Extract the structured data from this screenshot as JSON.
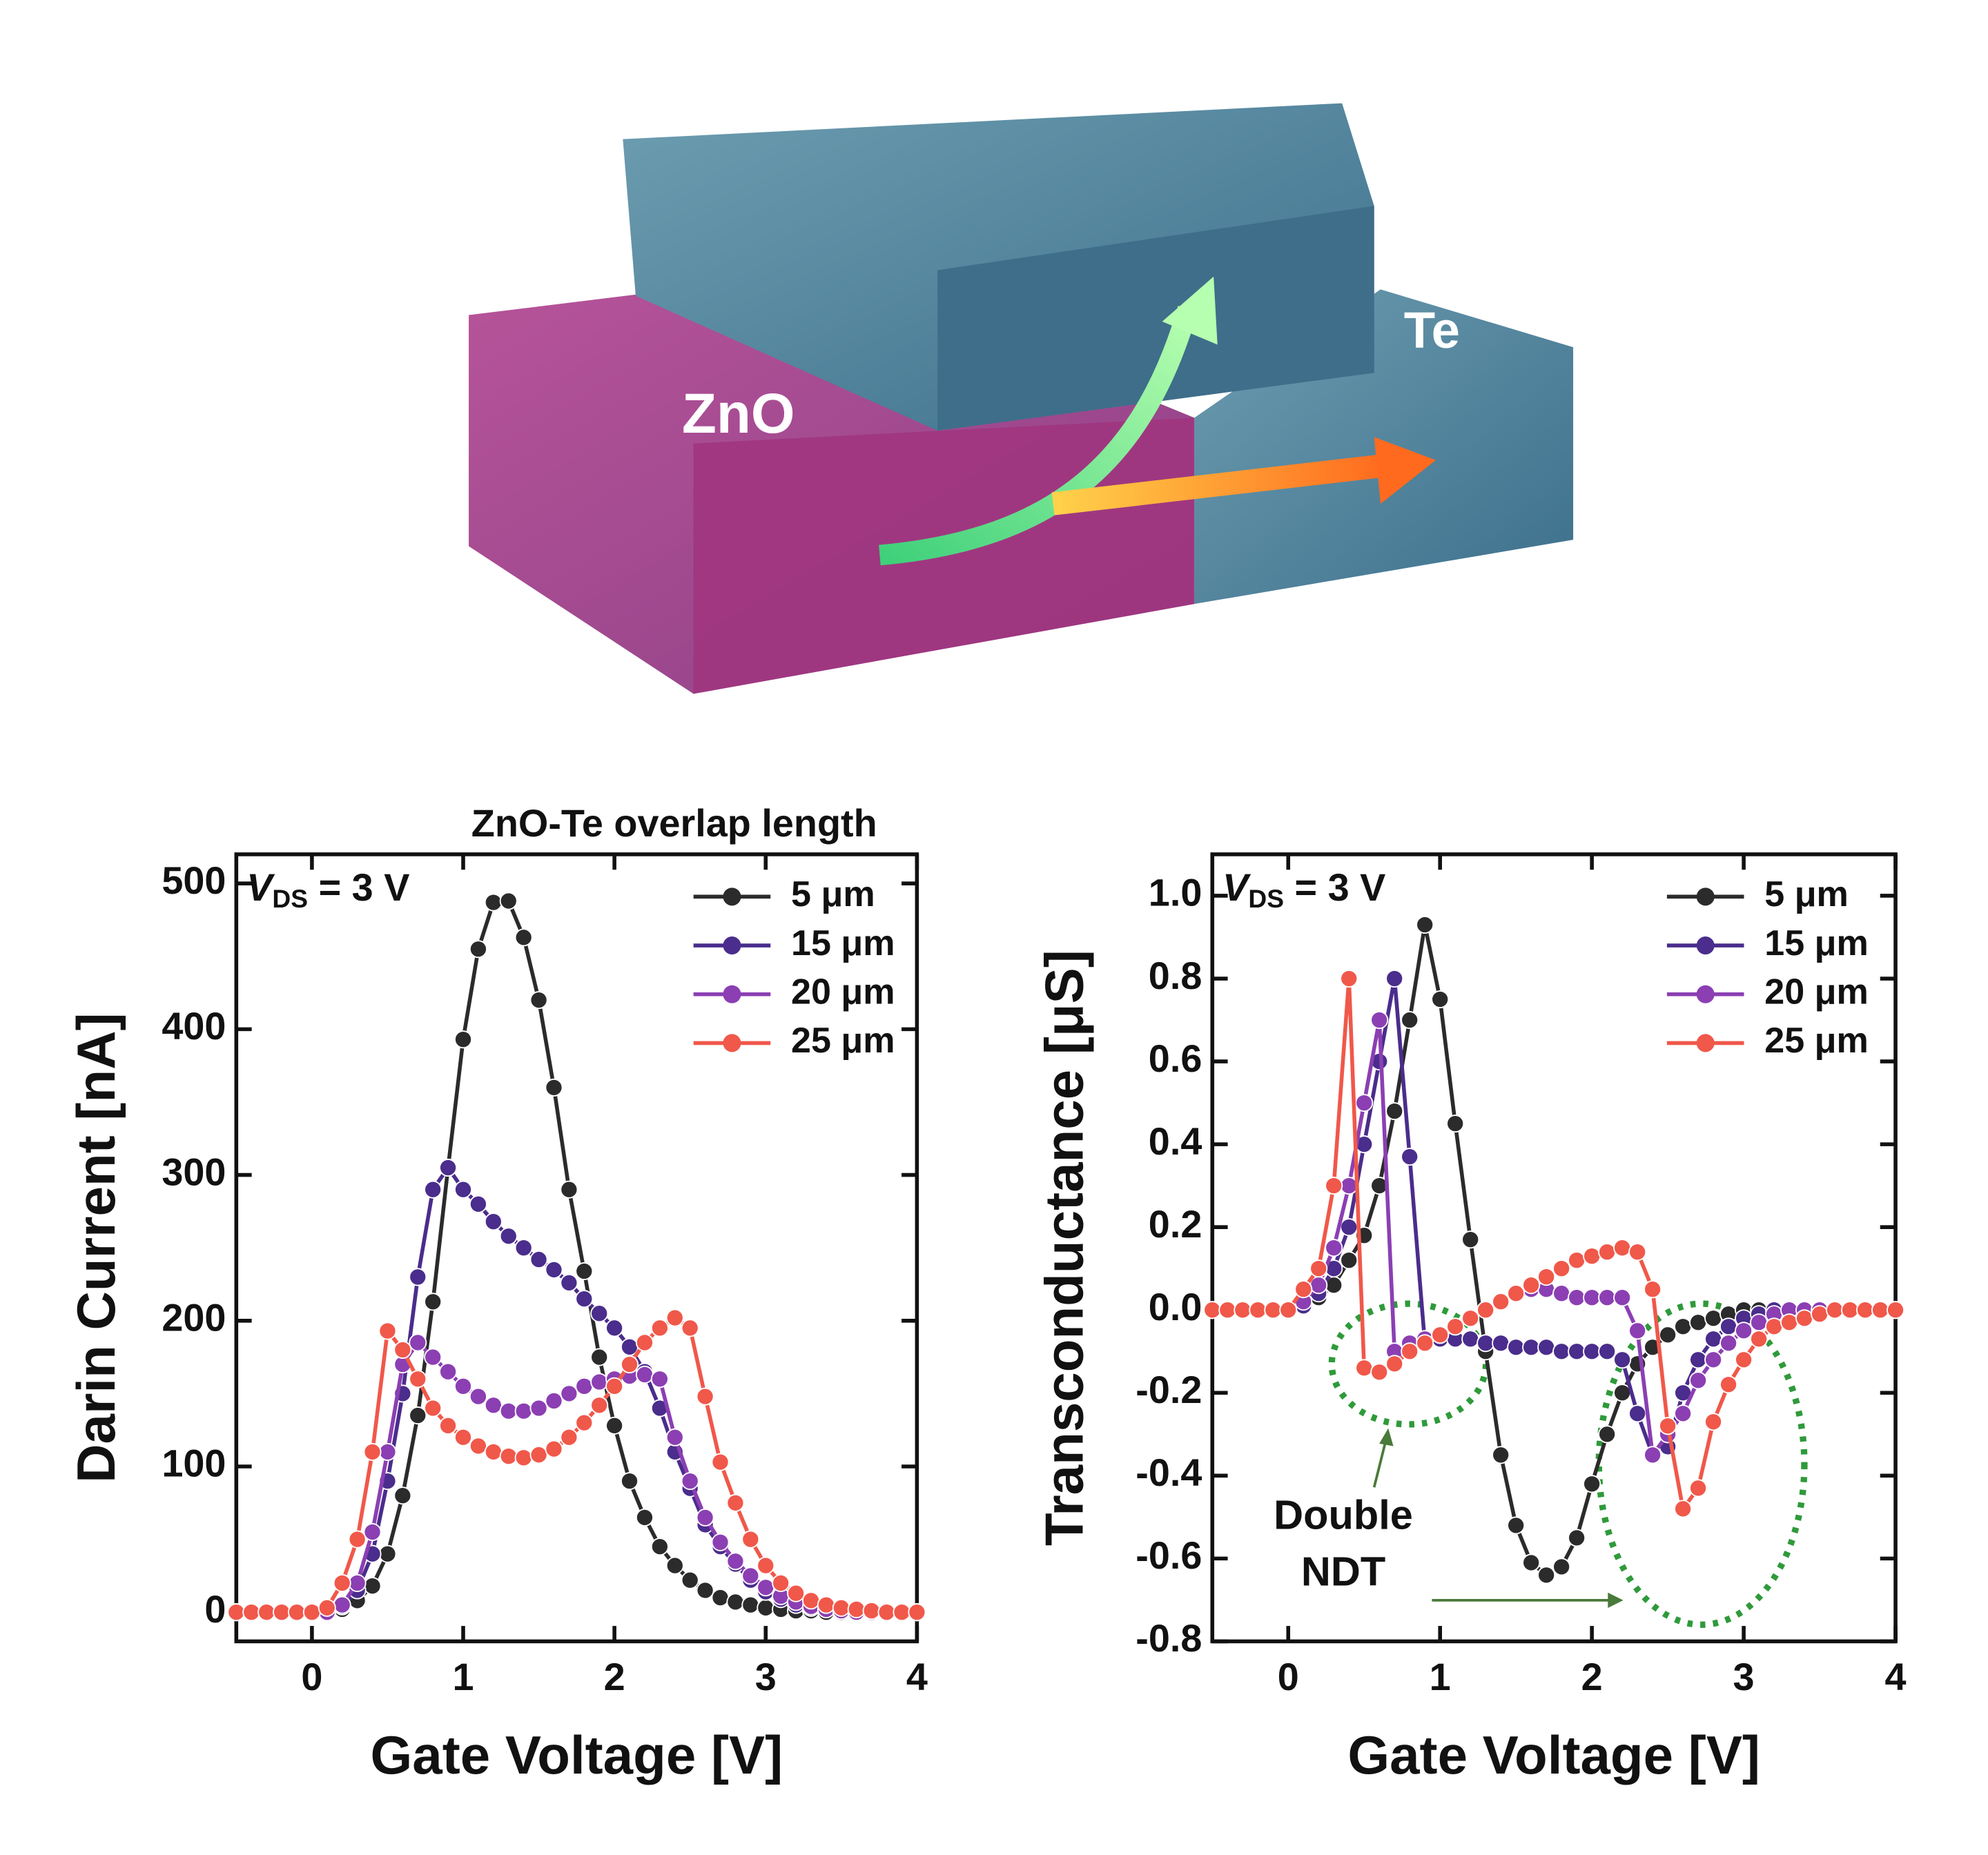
{
  "illustration": {
    "labels": [
      "ZnO",
      "Te"
    ]
  },
  "chart_data": [
    {
      "type": "line",
      "title": "ZnO-Te overlap length",
      "x_label": "Gate Voltage [V]",
      "y_label": "Darin Current [nA]",
      "condition": {
        "symbol": "V",
        "subscript": "DS",
        "text": " = 3 V"
      },
      "x": [
        -0.5,
        -0.4,
        -0.3,
        -0.2,
        -0.1,
        0,
        0.1,
        0.2,
        0.3,
        0.4,
        0.5,
        0.6,
        0.7,
        0.8,
        0.9,
        1.0,
        1.1,
        1.2,
        1.3,
        1.4,
        1.5,
        1.6,
        1.7,
        1.8,
        1.9,
        2.0,
        2.1,
        2.2,
        2.3,
        2.4,
        2.5,
        2.6,
        2.7,
        2.8,
        2.9,
        3.0,
        3.1,
        3.2,
        3.3,
        3.4,
        3.5,
        3.6,
        3.7,
        3.8,
        3.9,
        4.0
      ],
      "series": [
        {
          "name": "5 μm",
          "color": "#2b2b2b",
          "values": [
            0,
            0,
            0,
            0,
            0,
            0,
            0,
            2,
            8,
            18,
            40,
            80,
            135,
            213,
            305,
            393,
            455,
            487,
            488,
            463,
            420,
            360,
            290,
            234,
            175,
            128,
            90,
            65,
            45,
            32,
            22,
            15,
            10,
            7,
            5,
            3,
            2,
            1,
            1,
            0,
            0,
            0,
            0,
            0,
            0,
            0
          ]
        },
        {
          "name": "15 μm",
          "color": "#4a2d8c",
          "values": [
            0,
            0,
            0,
            0,
            0,
            0,
            0,
            4,
            15,
            40,
            90,
            150,
            230,
            290,
            305,
            290,
            280,
            268,
            258,
            250,
            242,
            235,
            226,
            215,
            205,
            195,
            182,
            165,
            140,
            110,
            85,
            60,
            45,
            33,
            22,
            14,
            9,
            5,
            3,
            2,
            1,
            0,
            0,
            0,
            0,
            0
          ]
        },
        {
          "name": "20 μm",
          "color": "#8b3fb3",
          "values": [
            0,
            0,
            0,
            0,
            0,
            0,
            0,
            5,
            20,
            55,
            110,
            170,
            185,
            175,
            165,
            155,
            148,
            142,
            138,
            138,
            140,
            145,
            150,
            155,
            158,
            160,
            162,
            163,
            160,
            120,
            90,
            65,
            48,
            35,
            25,
            17,
            11,
            7,
            4,
            2,
            1,
            0,
            0,
            0,
            0,
            0
          ]
        },
        {
          "name": "25 μm",
          "color": "#f0584a",
          "values": [
            0,
            0,
            0,
            0,
            0,
            0,
            3,
            20,
            50,
            110,
            193,
            180,
            160,
            140,
            128,
            120,
            114,
            110,
            107,
            106,
            108,
            112,
            120,
            130,
            142,
            155,
            170,
            185,
            195,
            202,
            195,
            148,
            103,
            75,
            50,
            32,
            20,
            13,
            8,
            5,
            3,
            2,
            1,
            0,
            0,
            0
          ]
        }
      ],
      "xlim": [
        -0.5,
        4
      ],
      "ylim": [
        -20,
        520
      ],
      "xticks": [
        0,
        1,
        2,
        3,
        4
      ],
      "yticks": [
        0,
        100,
        200,
        300,
        400,
        500
      ],
      "legend": "top-right"
    },
    {
      "type": "line",
      "x_label": "Gate Voltage [V]",
      "y_label": "Transconductance [μS]",
      "condition": {
        "symbol": "V",
        "subscript": "DS",
        "text": " = 3 V"
      },
      "annotation_lines": [
        "Double",
        "NDT"
      ],
      "x": [
        -0.5,
        -0.4,
        -0.3,
        -0.2,
        -0.1,
        0,
        0.1,
        0.2,
        0.3,
        0.4,
        0.5,
        0.6,
        0.7,
        0.8,
        0.9,
        1.0,
        1.1,
        1.2,
        1.3,
        1.4,
        1.5,
        1.6,
        1.7,
        1.8,
        1.9,
        2.0,
        2.1,
        2.2,
        2.3,
        2.4,
        2.5,
        2.6,
        2.7,
        2.8,
        2.9,
        3.0,
        3.1,
        3.2,
        3.3,
        3.4,
        3.5,
        3.6,
        3.7,
        3.8,
        3.9,
        4.0
      ],
      "series": [
        {
          "name": "5 μm",
          "color": "#2b2b2b",
          "values": [
            0,
            0,
            0,
            0,
            0,
            0,
            0.01,
            0.03,
            0.06,
            0.12,
            0.18,
            0.3,
            0.48,
            0.7,
            0.93,
            0.75,
            0.45,
            0.17,
            -0.1,
            -0.35,
            -0.52,
            -0.61,
            -0.64,
            -0.62,
            -0.55,
            -0.42,
            -0.3,
            -0.2,
            -0.13,
            -0.09,
            -0.06,
            -0.04,
            -0.03,
            -0.02,
            -0.01,
            0,
            0,
            0,
            0,
            0,
            0,
            0,
            0,
            0,
            0,
            0
          ]
        },
        {
          "name": "15 μm",
          "color": "#4a2d8c",
          "values": [
            0,
            0,
            0,
            0,
            0,
            0,
            0.01,
            0.04,
            0.1,
            0.2,
            0.4,
            0.6,
            0.8,
            0.37,
            -0.08,
            -0.07,
            -0.07,
            -0.07,
            -0.08,
            -0.08,
            -0.09,
            -0.09,
            -0.09,
            -0.1,
            -0.1,
            -0.1,
            -0.1,
            -0.12,
            -0.25,
            -0.35,
            -0.33,
            -0.2,
            -0.12,
            -0.07,
            -0.04,
            -0.02,
            -0.01,
            0,
            0,
            0,
            0,
            0,
            0,
            0,
            0,
            0
          ]
        },
        {
          "name": "20 μm",
          "color": "#8b3fb3",
          "values": [
            0,
            0,
            0,
            0,
            0,
            0,
            0.02,
            0.06,
            0.15,
            0.3,
            0.5,
            0.7,
            -0.1,
            -0.08,
            -0.07,
            -0.06,
            -0.04,
            -0.02,
            0,
            0.02,
            0.04,
            0.05,
            0.05,
            0.04,
            0.03,
            0.03,
            0.03,
            0.03,
            -0.05,
            -0.35,
            -0.3,
            -0.25,
            -0.17,
            -0.12,
            -0.08,
            -0.05,
            -0.03,
            -0.01,
            0,
            0,
            0,
            0,
            0,
            0,
            0,
            0
          ]
        },
        {
          "name": "25 μm",
          "color": "#f0584a",
          "values": [
            0,
            0,
            0,
            0,
            0,
            0,
            0.05,
            0.1,
            0.3,
            0.8,
            -0.14,
            -0.15,
            -0.13,
            -0.1,
            -0.08,
            -0.06,
            -0.04,
            -0.02,
            0,
            0.02,
            0.04,
            0.06,
            0.08,
            0.1,
            0.12,
            0.13,
            0.14,
            0.15,
            0.14,
            0.05,
            -0.28,
            -0.48,
            -0.43,
            -0.27,
            -0.18,
            -0.12,
            -0.07,
            -0.04,
            -0.03,
            -0.02,
            -0.01,
            0,
            0,
            0,
            0,
            0
          ]
        }
      ],
      "xlim": [
        -0.5,
        4
      ],
      "ylim": [
        -0.8,
        1.1
      ],
      "xticks": [
        0,
        1,
        2,
        3,
        4
      ],
      "yticks": [
        -0.8,
        -0.6,
        -0.4,
        -0.2,
        {
          "value": 0,
          "label": "0.0"
        },
        0.2,
        0.4,
        0.6,
        0.8,
        {
          "value": 1,
          "label": "1.0"
        }
      ],
      "legend": "top-right"
    }
  ]
}
